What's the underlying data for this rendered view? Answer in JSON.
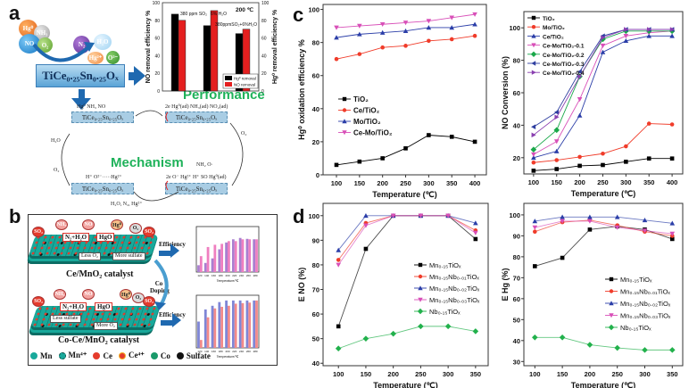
{
  "panel_labels": {
    "a": "a",
    "b": "b",
    "c": "c",
    "d": "d"
  },
  "panel_a": {
    "reactants": {
      "hg0": "Hg⁰",
      "nh3": "NH₃",
      "no": "NO",
      "o2": "O₂"
    },
    "products": {
      "n2": "N₂",
      "h2o": "H₂O",
      "hg2": "Hg²⁺",
      "o2minus": "O²⁻"
    },
    "catalyst": "TiCe₀.₂₅Sn₀.₂₅Oₓ",
    "performance_label": "Performance",
    "mechanism_label": "Mechanism",
    "mechanism": {
      "box_label": "TiCe₀.₂₅Sn₀.₂₅Oₓ",
      "top_left_species": "Hg⁰    NH₃    NO",
      "top_right_species": "2e  Hg⁰(ad)    NH₃(ad)    NO₂(ad)",
      "right_o2": "O₂",
      "bottom_right_species_top": "NH₂  O·",
      "bottom_right_species": "2e O⁻ Hg²⁺  H⁺  SO   Hg⁰(ad)",
      "bottom_left_species": "H⁺     O²⁻·····Hg²⁺",
      "left_h2o": "H₂O",
      "left_o2": "O₂",
      "bottom_products": "H₂O, N₂, Hg²⁺"
    }
  },
  "panel_b": {
    "top_catalyst": "Ce/MnO₂ catalyst",
    "bottom_catalyst": "Co-Ce/MnO₂ catalyst",
    "doping_label": "Co Doping",
    "efficiency_label": "Efficiency",
    "gas_bubbles": [
      "SO₂",
      "NH₃",
      "NO",
      "Hg⁰",
      "O₂",
      "SO₂"
    ],
    "top_boxes": {
      "n2h2o": "N₂+H₂O",
      "hgo": "HgO",
      "less": "Less O₂",
      "more": "More sulfate"
    },
    "bottom_boxes": {
      "n2h2o": "N₂+H₂O",
      "hgo": "HgO",
      "less": "Less sulfate",
      "more": "More O₂"
    },
    "legend": [
      {
        "label": "Mn",
        "color": "#18a99b"
      },
      {
        "label": "Mn⁴⁺",
        "color": "#18a99b"
      },
      {
        "label": "Ce",
        "color": "#e53b2c"
      },
      {
        "label": "Ce⁴⁺",
        "color": "#e53b2c"
      },
      {
        "label": "Co",
        "color": "#1a9a6a"
      },
      {
        "label": "Sulfate",
        "color": "#111111"
      }
    ]
  },
  "chart_data": [
    {
      "type": "bar",
      "title": "200 ℃",
      "categories": [
        "380 ppm SO₂",
        "6% H₂O",
        "380ppmSO₂+6%H₂O"
      ],
      "ylabel": "NO removal efficiency %",
      "y2label": "Hg⁰ removal efficiency %",
      "ylim": [
        0,
        100
      ],
      "yticks": [
        0,
        20,
        40,
        60,
        80,
        100
      ],
      "series": [
        {
          "name": "Hg⁰ removal",
          "color": "#000000",
          "values": [
            87,
            74,
            65
          ]
        },
        {
          "name": "NO removal",
          "color": "#e41f1f",
          "values": [
            80,
            91,
            70
          ]
        }
      ],
      "legend": "bottom-right"
    },
    {
      "type": "bar",
      "xlabel": "Temperature/℃",
      "categories": [
        "120",
        "140",
        "160",
        "180",
        "200",
        "220",
        "240",
        "260",
        "280"
      ],
      "ylim": [
        0,
        100
      ],
      "series": [
        {
          "color": "#a97fd0",
          "values": [
            15,
            20,
            30,
            50,
            65,
            72,
            75,
            73,
            72
          ]
        },
        {
          "color": "#ef7fc0",
          "values": [
            35,
            55,
            60,
            62,
            68,
            68,
            72,
            72,
            72
          ]
        }
      ]
    },
    {
      "type": "bar",
      "xlabel": "Temperature/℃",
      "categories": [
        "120",
        "140",
        "160",
        "180",
        "200",
        "220",
        "240",
        "260",
        "280"
      ],
      "ylim": [
        0,
        100
      ],
      "series": [
        {
          "color": "#7f86d6",
          "values": [
            50,
            73,
            80,
            87,
            90,
            90,
            90,
            90,
            90
          ]
        },
        {
          "color": "#f28a8a",
          "values": [
            15,
            58,
            75,
            78,
            80,
            84,
            85,
            86,
            90
          ]
        }
      ]
    },
    {
      "type": "line",
      "xlabel": "Temperature (℃)",
      "ylabel": "Hg⁰ oxidation efficiency %",
      "xlim": [
        71,
        425
      ],
      "ylim": [
        0,
        103
      ],
      "xticks": [
        100,
        150,
        200,
        250,
        300,
        350,
        400
      ],
      "yticks": [
        0,
        20,
        40,
        60,
        80,
        100
      ],
      "x": [
        100,
        150,
        200,
        250,
        300,
        350,
        400
      ],
      "legend": "center-left",
      "series": [
        {
          "name": "TiO₂",
          "color": "#000000",
          "marker": "square",
          "values": [
            6,
            8,
            10,
            16,
            24,
            23,
            20
          ]
        },
        {
          "name": "Ce/TiO₂",
          "color": "#f03c2a",
          "marker": "circle",
          "values": [
            70,
            73,
            77,
            78,
            81,
            82,
            84
          ]
        },
        {
          "name": "Mo/TiO₂",
          "color": "#2b3ea8",
          "marker": "triangle-up",
          "values": [
            83,
            85,
            86,
            87,
            89,
            89,
            91
          ]
        },
        {
          "name": "Ce-Mo/TiO₂",
          "color": "#d84fb8",
          "marker": "triangle-down",
          "values": [
            89,
            90,
            91,
            92,
            93,
            95,
            97
          ]
        }
      ]
    },
    {
      "type": "line",
      "xlabel": "Temperature (℃)",
      "ylabel": "NO Conversion (%)",
      "xlim": [
        79,
        423
      ],
      "ylim": [
        10,
        110
      ],
      "xticks": [
        100,
        150,
        200,
        250,
        300,
        350,
        400
      ],
      "yticks": [
        20,
        40,
        60,
        80,
        100
      ],
      "x": [
        100,
        150,
        200,
        250,
        300,
        350,
        400
      ],
      "legend": "top-left",
      "series": [
        {
          "name": "TiO₂",
          "color": "#000000",
          "marker": "square",
          "values": [
            12,
            13,
            15,
            15.5,
            17.5,
            19.5,
            19.5
          ]
        },
        {
          "name": "Mo/TiO₂",
          "color": "#f03c2a",
          "marker": "circle",
          "values": [
            17,
            18.5,
            20.5,
            22.5,
            27,
            41,
            40.5
          ]
        },
        {
          "name": "Ce/TiO₂",
          "color": "#2b3ea8",
          "marker": "triangle-up",
          "values": [
            20,
            24,
            46,
            85,
            92,
            95,
            95
          ]
        },
        {
          "name": "Ce-Mo/TiO₂-0.1",
          "color": "#d84fb8",
          "marker": "triangle-down",
          "values": [
            22,
            30,
            56,
            89,
            95,
            97,
            98
          ]
        },
        {
          "name": "Ce-Mo/TiO₂-0.2",
          "color": "#1aa84a",
          "marker": "diamond",
          "values": [
            25,
            37,
            70,
            93,
            98,
            98,
            98
          ]
        },
        {
          "name": "Ce-Mo/TiO₂-0.3",
          "color": "#2f3fa0",
          "marker": "triangle-left",
          "values": [
            39,
            48,
            73,
            95,
            99,
            99,
            99
          ]
        },
        {
          "name": "Ce-Mo/TiO₂-0.4",
          "color": "#8a3fb0",
          "marker": "triangle-right",
          "values": [
            34,
            45,
            70,
            94,
            99,
            99,
            99
          ]
        }
      ]
    },
    {
      "type": "line",
      "xlabel": "Temperature (℃)",
      "ylabel": "E NO (%)",
      "xlim": [
        72,
        373
      ],
      "ylim": [
        39,
        105
      ],
      "xticks": [
        100,
        150,
        200,
        250,
        300,
        350
      ],
      "yticks": [
        40,
        50,
        60,
        70,
        80,
        90,
        100
      ],
      "x": [
        100,
        150,
        200,
        250,
        300,
        350
      ],
      "legend": "center-right",
      "series": [
        {
          "name": "Mn₀.₁₅TiOₓ",
          "color": "#000000",
          "marker": "square",
          "values": [
            55,
            86.5,
            100,
            100,
            100,
            90.5
          ]
        },
        {
          "name": "Mn₀.₁₅Nb₀.₀₁TiOₓ",
          "color": "#f03c2a",
          "marker": "circle",
          "values": [
            82,
            97,
            100,
            100,
            100,
            94
          ]
        },
        {
          "name": "Mn₀.₁₅Nb₀.₀₂TiOₓ",
          "color": "#2b3ea8",
          "marker": "triangle-up",
          "values": [
            86,
            100,
            100,
            100,
            100,
            97
          ]
        },
        {
          "name": "Mn₀.₁₅Nb₀.₀₃TiOₓ",
          "color": "#d84fb8",
          "marker": "triangle-down",
          "values": [
            80,
            96,
            100,
            100,
            100,
            93
          ]
        },
        {
          "name": "Nb₀.₁₅TiOₓ",
          "color": "#22b14c",
          "marker": "diamond",
          "values": [
            46,
            50,
            52,
            55,
            55,
            53
          ]
        }
      ]
    },
    {
      "type": "line",
      "xlabel": "Temperature (℃)",
      "ylabel": "E Hg (%)",
      "xlim": [
        80,
        369
      ],
      "ylim": [
        28,
        105.5
      ],
      "xticks": [
        100,
        150,
        200,
        250,
        300,
        350
      ],
      "yticks": [
        30,
        40,
        50,
        60,
        70,
        80,
        90,
        100
      ],
      "x": [
        100,
        150,
        200,
        250,
        300,
        350
      ],
      "legend": "center-right",
      "series": [
        {
          "name": "Mn₀.₁₅TiOₓ",
          "color": "#000000",
          "marker": "square",
          "values": [
            75.5,
            79.5,
            93,
            94.5,
            93,
            88.5
          ]
        },
        {
          "name": "Mn₀.₁₅Nb₀.₀₁TiOₓ",
          "color": "#f03c2a",
          "marker": "circle",
          "values": [
            92,
            96.5,
            97.5,
            95,
            92,
            90
          ]
        },
        {
          "name": "Mn₀.₁₅Nb₀.₀₂TiOₓ",
          "color": "#2b3ea8",
          "marker": "triangle-up",
          "values": [
            97,
            99,
            99,
            99,
            97.5,
            96
          ]
        },
        {
          "name": "Mn₀.₁₅Nb₀.₀₃TiOₓ",
          "color": "#d84fb8",
          "marker": "triangle-down",
          "values": [
            94,
            97,
            97,
            94,
            92.5,
            91
          ]
        },
        {
          "name": "Nb₀.₁₅TiOₓ",
          "color": "#22b14c",
          "marker": "diamond",
          "values": [
            41.5,
            41.5,
            38,
            36.5,
            35.5,
            35.5
          ]
        }
      ]
    }
  ]
}
